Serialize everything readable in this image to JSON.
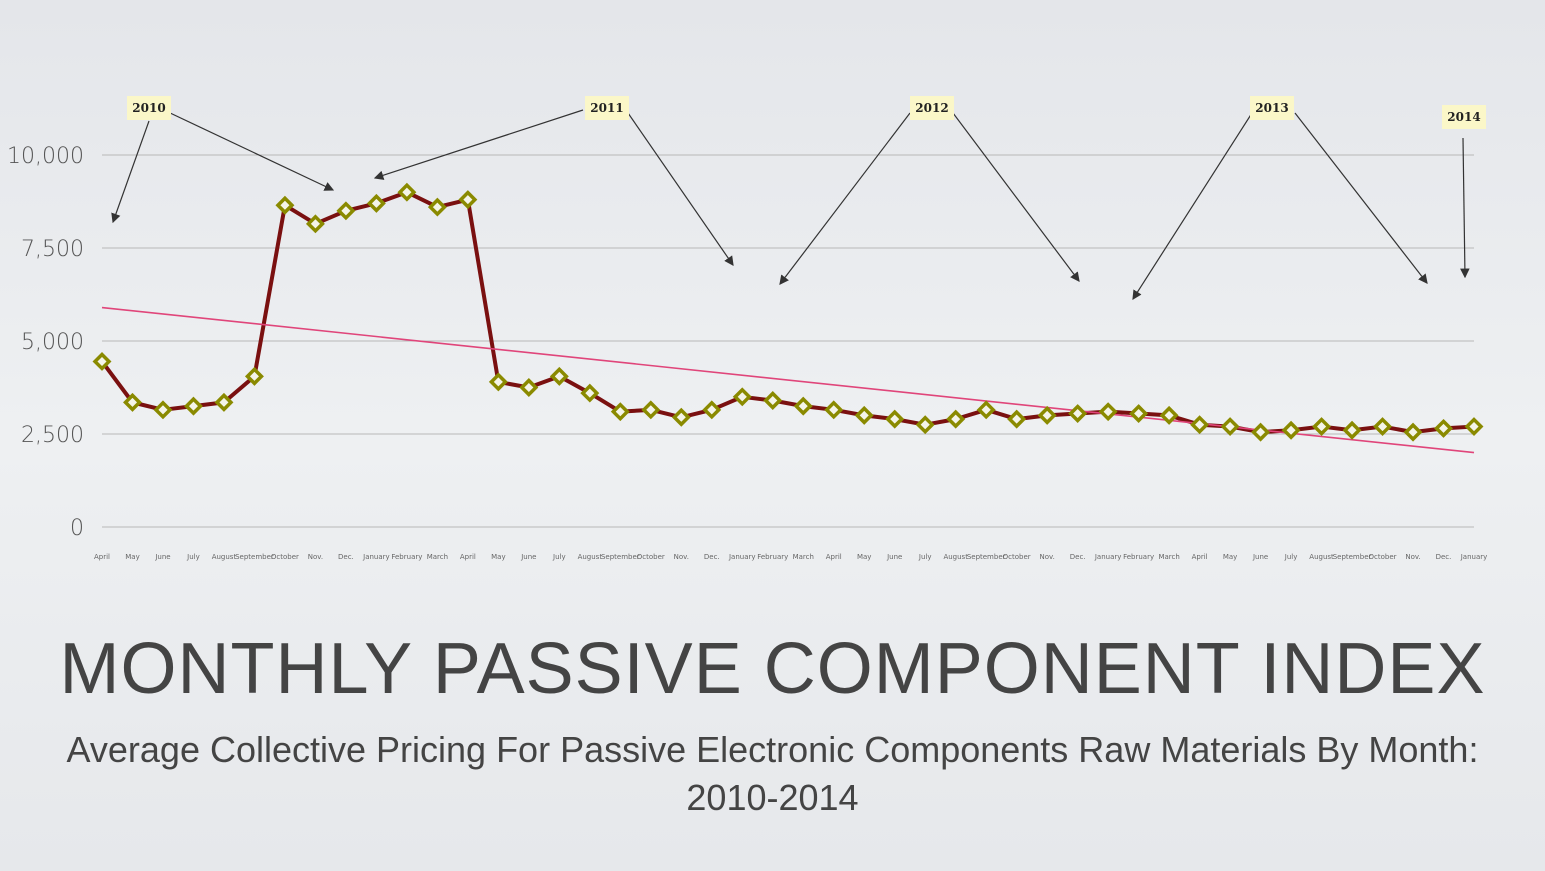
{
  "chart_data": {
    "type": "line",
    "title": "MONTHLY PASSIVE COMPONENT INDEX",
    "subtitle": "Average Collective Pricing For Passive Electronic Components Raw Materials By Month: 2010-2014",
    "categories": [
      "April",
      "May",
      "June",
      "July",
      "August",
      "September",
      "October",
      "Nov.",
      "Dec.",
      "January",
      "February",
      "March",
      "April",
      "May",
      "June",
      "July",
      "August",
      "September",
      "October",
      "Nov.",
      "Dec.",
      "January",
      "February",
      "March",
      "April",
      "May",
      "June",
      "July",
      "August",
      "September",
      "October",
      "Nov.",
      "Dec.",
      "January",
      "February",
      "March",
      "April",
      "May",
      "June",
      "July",
      "August",
      "September",
      "October",
      "Nov.",
      "Dec.",
      "January"
    ],
    "series": [
      {
        "color": "#7a1010",
        "marker_color": "#8a8a00",
        "values": [
          4450,
          3350,
          3150,
          3250,
          3350,
          4050,
          8650,
          8150,
          8500,
          8700,
          9000,
          8600,
          8800,
          3900,
          3750,
          4050,
          3600,
          3100,
          3150,
          2950,
          3150,
          3500,
          3400,
          3250,
          3150,
          3000,
          2900,
          2750,
          2900,
          3150,
          2900,
          3000,
          3050,
          3100,
          3050,
          3000,
          2750,
          2700,
          2550,
          2600,
          2700,
          2600,
          2700,
          2550,
          2650,
          2700
        ]
      }
    ],
    "trend": {
      "color": "#e0457a",
      "values": [
        5900,
        2000
      ]
    },
    "annotations": [
      "2010",
      "2011",
      "2012",
      "2013",
      "2014"
    ],
    "ylim": [
      0,
      10000
    ],
    "yticks": [
      0,
      {
        "value": 2500,
        "label": "2,500"
      },
      {
        "value": 5000,
        "label": "5,000"
      },
      {
        "value": 7500,
        "label": "7,500"
      },
      {
        "value": 10000,
        "label": "10,000"
      }
    ],
    "grid": true
  }
}
